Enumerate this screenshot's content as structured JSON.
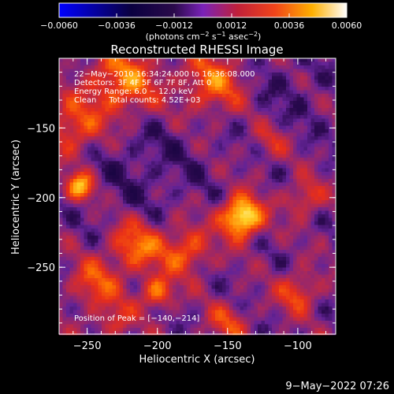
{
  "chart_data": {
    "type": "heatmap",
    "title": "Reconstructed RHESSI Image",
    "xlabel": "Heliocentric X (arcsec)",
    "ylabel": "Heliocentric Y (arcsec)",
    "xlim": [
      -270,
      -73
    ],
    "ylim": [
      -298,
      -100
    ],
    "xticks": [
      -250,
      -200,
      -150,
      -100
    ],
    "xtick_labels": [
      "−250",
      "−200",
      "−150",
      "−100"
    ],
    "yticks": [
      -150,
      -200,
      -250
    ],
    "ytick_labels": [
      "−150",
      "−200",
      "−250"
    ],
    "colorbar": {
      "min": -0.006,
      "max": 0.006,
      "ticks": [
        -0.006,
        -0.0036,
        -0.0012,
        0.0012,
        0.0036,
        0.006
      ],
      "tick_labels": [
        "−0.0060",
        "−0.0036",
        "−0.0012",
        "0.0012",
        "0.0036",
        "0.0060"
      ],
      "units_pre": "(photons cm",
      "units_sup1": "−2",
      "units_mid": " s",
      "units_sup2": "−1",
      "units_mid2": " asec",
      "units_sup3": "−2",
      "units_post": ")",
      "colors": [
        "#0000ff",
        "#000000",
        "#7a22b8",
        "#e8231c",
        "#ff8c00",
        "#ffffff"
      ]
    },
    "annotations": [
      "22−May−2010 16:34:24.000 to 16:36:08.000",
      "Detectors: 3F 4F 5F 6F 7F 8F, Att 0",
      "Energy Range: 6.0 − 12.0 keV",
      "Clean     Total counts: 4.52E+03"
    ],
    "peak_label": "Position of Peak = [−140,−214]",
    "peak": {
      "x": -140,
      "y": -214,
      "value": 0.006
    },
    "sources": [
      {
        "x": -140,
        "y": -214,
        "value": 0.0058,
        "sigma": 10
      },
      {
        "x": -255,
        "y": -192,
        "value": 0.004,
        "sigma": 7
      },
      {
        "x": -225,
        "y": -118,
        "value": 0.0032,
        "sigma": 18
      },
      {
        "x": -160,
        "y": -118,
        "value": 0.0028,
        "sigma": 16
      },
      {
        "x": -260,
        "y": -150,
        "value": 0.0026,
        "sigma": 14
      },
      {
        "x": -215,
        "y": -235,
        "value": 0.003,
        "sigma": 13
      },
      {
        "x": -180,
        "y": -238,
        "value": 0.0028,
        "sigma": 12
      },
      {
        "x": -200,
        "y": -268,
        "value": 0.0032,
        "sigma": 8
      },
      {
        "x": -245,
        "y": -262,
        "value": 0.0024,
        "sigma": 12
      },
      {
        "x": -100,
        "y": -268,
        "value": 0.0024,
        "sigma": 10
      },
      {
        "x": -95,
        "y": -200,
        "value": 0.0022,
        "sigma": 9
      },
      {
        "x": -120,
        "y": -160,
        "value": 0.0014,
        "sigma": 10
      },
      {
        "x": -230,
        "y": -288,
        "value": 0.0018,
        "sigma": 10
      },
      {
        "x": -150,
        "y": -290,
        "value": 0.002,
        "sigma": 10
      },
      {
        "x": -210,
        "y": -175,
        "value": -0.0008,
        "sigma": 30
      },
      {
        "x": -110,
        "y": -125,
        "value": -0.0006,
        "sigma": 25
      }
    ]
  },
  "footer": {
    "timestamp": "9−May−2022 07:26"
  }
}
